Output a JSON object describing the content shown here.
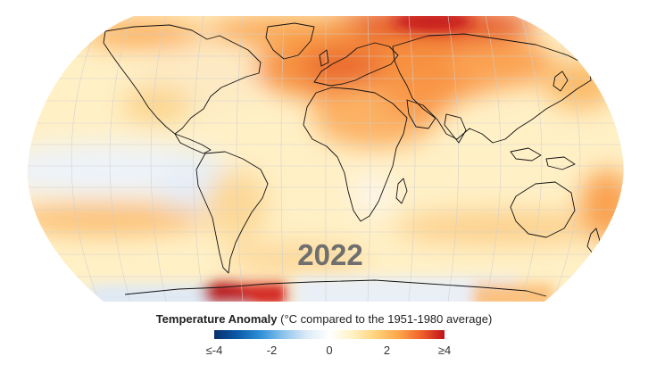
{
  "map": {
    "year": "2022",
    "projection": "Robinson",
    "coastlines": true,
    "graticule": true
  },
  "legend": {
    "title_bold": "Temperature Anomaly",
    "title_rest": " (°C compared to the 1951-1980 average)",
    "ticks": [
      {
        "value": -4,
        "label": "≤-4"
      },
      {
        "value": -2,
        "label": "-2"
      },
      {
        "value": 0,
        "label": "0"
      },
      {
        "value": 2,
        "label": "2"
      },
      {
        "value": 4,
        "label": "≥4"
      }
    ],
    "range": [
      -4,
      4
    ],
    "colors": [
      "#08306b",
      "#0a5aa8",
      "#2f8fd6",
      "#8cc4ec",
      "#dbeaf6",
      "#ffffff",
      "#fff2c4",
      "#ffd27a",
      "#fca64a",
      "#f0612a",
      "#c0101a"
    ]
  },
  "colors": {
    "land_outline": "#111111",
    "graticule": "#cfcfcf",
    "year": "#6f6f6f"
  }
}
